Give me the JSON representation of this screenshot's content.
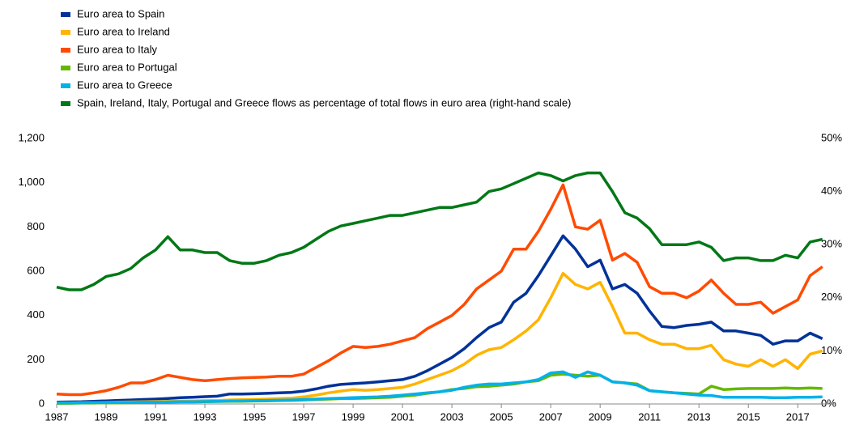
{
  "chart_data": {
    "type": "line",
    "x": [
      1987,
      1987.5,
      1988,
      1988.5,
      1989,
      1989.5,
      1990,
      1990.5,
      1991,
      1991.5,
      1992,
      1992.5,
      1993,
      1993.5,
      1994,
      1994.5,
      1995,
      1995.5,
      1996,
      1996.5,
      1997,
      1997.5,
      1998,
      1998.5,
      1999,
      1999.5,
      2000,
      2000.5,
      2001,
      2001.5,
      2002,
      2002.5,
      2003,
      2003.5,
      2004,
      2004.5,
      2005,
      2005.5,
      2006,
      2006.5,
      2007,
      2007.5,
      2008,
      2008.5,
      2009,
      2009.5,
      2010,
      2010.5,
      2011,
      2011.5,
      2012,
      2012.5,
      2013,
      2013.5,
      2014,
      2014.5,
      2015,
      2015.5,
      2016,
      2016.5,
      2017,
      2017.5,
      2018
    ],
    "xlim": [
      1987,
      2018.5
    ],
    "xticks": [
      1987,
      1989,
      1991,
      1993,
      1995,
      1997,
      1999,
      2001,
      2003,
      2005,
      2007,
      2009,
      2011,
      2013,
      2015,
      2017
    ],
    "ylim": [
      0,
      1200
    ],
    "yticks": [
      0,
      200,
      400,
      600,
      800,
      {
        "value": 1000,
        "label": "1,000"
      },
      {
        "value": 1200,
        "label": "1,200"
      }
    ],
    "y2lim": [
      0,
      50
    ],
    "y2ticks": [
      {
        "value": 0,
        "label": "0%"
      },
      {
        "value": 10,
        "label": "10%"
      },
      {
        "value": 20,
        "label": "20%"
      },
      {
        "value": 30,
        "label": "30%"
      },
      {
        "value": 40,
        "label": "40%"
      },
      {
        "value": 50,
        "label": "50%"
      }
    ],
    "grid": false,
    "legend": "top-left",
    "series": [
      {
        "name": "Euro area to Spain",
        "color": "#003299",
        "values": [
          8,
          9,
          10,
          12,
          14,
          16,
          18,
          20,
          22,
          25,
          28,
          30,
          33,
          35,
          45,
          45,
          46,
          48,
          50,
          52,
          58,
          68,
          80,
          88,
          92,
          95,
          100,
          105,
          110,
          125,
          150,
          180,
          210,
          250,
          300,
          345,
          370,
          460,
          500,
          580,
          670,
          760,
          700,
          620,
          650,
          520,
          540,
          500,
          420,
          350,
          345,
          355,
          360,
          370,
          330,
          330,
          320,
          310,
          270,
          285,
          285,
          320,
          295
        ]
      },
      {
        "name": "Euro area to Ireland",
        "color": "#ffb400",
        "values": [
          5,
          5,
          6,
          6,
          7,
          8,
          9,
          10,
          11,
          12,
          13,
          14,
          15,
          16,
          18,
          19,
          20,
          22,
          24,
          26,
          32,
          40,
          50,
          58,
          65,
          62,
          65,
          70,
          75,
          90,
          110,
          130,
          150,
          180,
          220,
          245,
          255,
          290,
          330,
          380,
          480,
          590,
          540,
          520,
          550,
          440,
          320,
          320,
          290,
          270,
          270,
          250,
          250,
          265,
          200,
          180,
          170,
          200,
          170,
          200,
          160,
          225,
          240
        ]
      },
      {
        "name": "Euro area to Italy",
        "color": "#ff4b00",
        "values": [
          45,
          42,
          42,
          50,
          60,
          75,
          95,
          95,
          110,
          130,
          120,
          110,
          105,
          110,
          115,
          118,
          120,
          122,
          125,
          125,
          135,
          165,
          195,
          230,
          260,
          255,
          260,
          270,
          285,
          300,
          340,
          370,
          400,
          450,
          520,
          560,
          600,
          700,
          700,
          780,
          880,
          990,
          800,
          790,
          830,
          650,
          680,
          640,
          530,
          500,
          500,
          480,
          510,
          560,
          500,
          450,
          450,
          460,
          410,
          440,
          470,
          580,
          620
        ]
      },
      {
        "name": "Euro area to Portugal",
        "color": "#65b800",
        "values": [
          3,
          3,
          4,
          4,
          5,
          5,
          6,
          6,
          7,
          8,
          9,
          9,
          10,
          11,
          12,
          12,
          13,
          14,
          15,
          16,
          18,
          20,
          22,
          24,
          25,
          26,
          28,
          30,
          35,
          40,
          48,
          55,
          65,
          70,
          78,
          80,
          85,
          90,
          100,
          105,
          130,
          135,
          130,
          125,
          130,
          100,
          95,
          90,
          60,
          55,
          50,
          48,
          45,
          80,
          65,
          68,
          70,
          70,
          70,
          72,
          70,
          72,
          70
        ]
      },
      {
        "name": "Euro area to Greece",
        "color": "#00b1ea",
        "values": [
          5,
          5,
          5,
          6,
          6,
          7,
          7,
          8,
          8,
          9,
          10,
          10,
          11,
          12,
          13,
          14,
          15,
          16,
          17,
          18,
          20,
          22,
          24,
          26,
          28,
          30,
          32,
          35,
          40,
          45,
          50,
          55,
          62,
          75,
          85,
          90,
          90,
          95,
          100,
          110,
          140,
          145,
          120,
          145,
          130,
          100,
          95,
          85,
          60,
          55,
          50,
          45,
          40,
          38,
          30,
          30,
          30,
          30,
          28,
          28,
          30,
          30,
          32
        ]
      },
      {
        "name": "Spain, Ireland, Italy, Portugal and Greece flows as percentage of total flows in euro area (right-hand scale)",
        "color": "#007816",
        "axis": "y2",
        "values": [
          22,
          21.5,
          21.5,
          22.5,
          24,
          24.5,
          25.5,
          27.5,
          29,
          31.5,
          29,
          29,
          28.5,
          28.5,
          27,
          26.5,
          26.5,
          27,
          28,
          28.5,
          29.5,
          31,
          32.5,
          33.5,
          34,
          34.5,
          35,
          35.5,
          35.5,
          36,
          36.5,
          37,
          37,
          37.5,
          38,
          40,
          40.5,
          41.5,
          42.5,
          43.5,
          43,
          42,
          43,
          43.5,
          43.5,
          40,
          36,
          35,
          33,
          30,
          30,
          30,
          30.5,
          29.5,
          27,
          27.5,
          27.5,
          27,
          27,
          28,
          27.5,
          30.5,
          31
        ]
      }
    ]
  }
}
